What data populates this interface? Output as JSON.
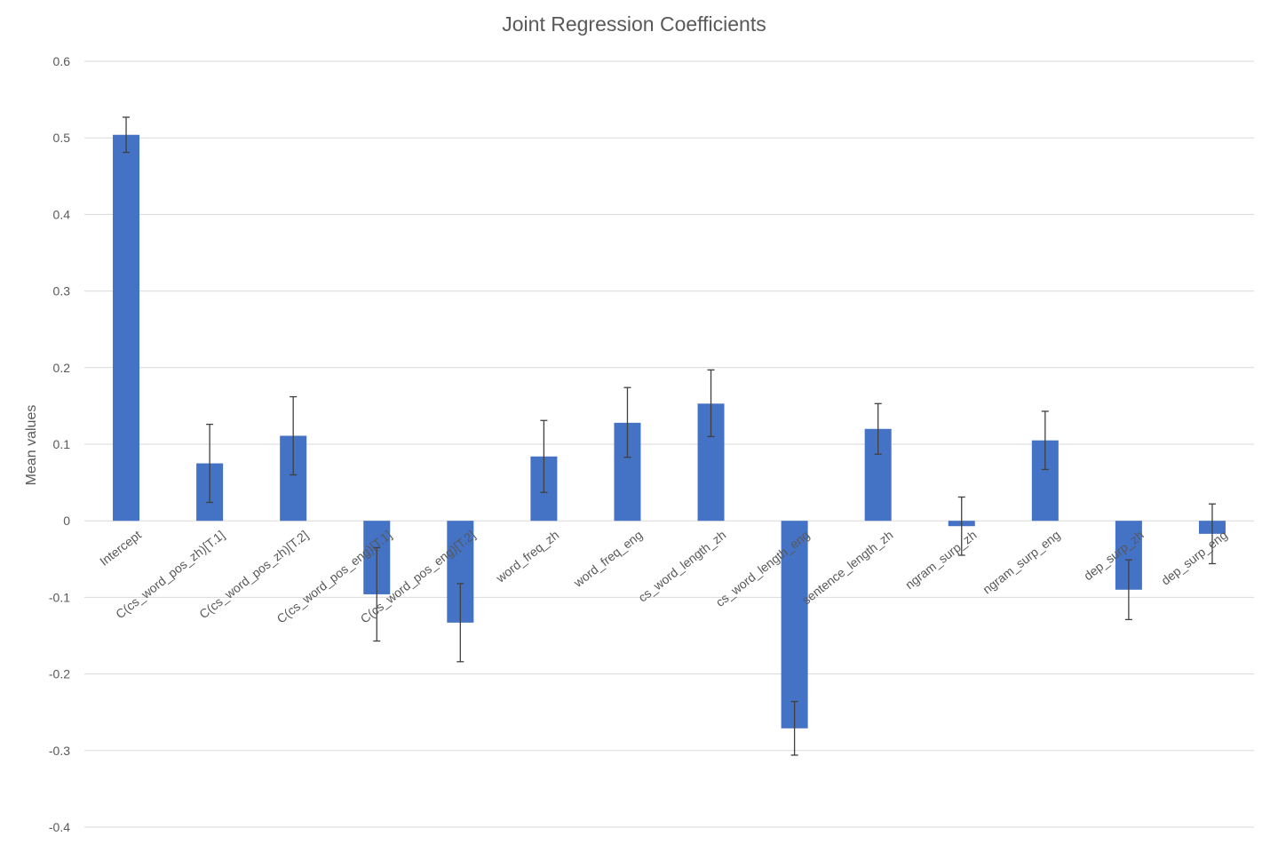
{
  "chart_data": {
    "type": "bar",
    "title": "Joint Regression Coefficients",
    "xlabel": "",
    "ylabel": "Mean values",
    "ylim": [
      -0.4,
      0.6
    ],
    "yticks": [
      0.6,
      0.5,
      0.4,
      0.3,
      0.2,
      0.1,
      0,
      -0.1,
      -0.2,
      -0.3,
      -0.4
    ],
    "ytick_labels": [
      "0.6",
      "0.5",
      "0.4",
      "0.3",
      "0.2",
      "0.1",
      "0",
      "-0.1",
      "-0.2",
      "-0.3",
      "-0.4"
    ],
    "grid": true,
    "legend": "none",
    "bar_color": "#4472c4",
    "categories": [
      "Intercept",
      "C(cs_word_pos_zh)[T.1]",
      "C(cs_word_pos_zh)[T.2]",
      "C(cs_word_pos_eng)[T.1]",
      "C(cs_word_pos_eng)[T.2]",
      "word_freq_zh",
      "word_freq_eng",
      "cs_word_length_zh",
      "cs_word_length_eng",
      "sentence_length_zh",
      "ngram_surp_zh",
      "ngram_surp_eng",
      "dep_surp_zh",
      "dep_surp_eng"
    ],
    "values": [
      0.504,
      0.075,
      0.111,
      -0.096,
      -0.133,
      0.084,
      0.128,
      0.153,
      -0.271,
      0.12,
      -0.007,
      0.105,
      -0.09,
      -0.017
    ],
    "error_low": [
      0.481,
      0.024,
      0.06,
      -0.157,
      -0.184,
      0.037,
      0.083,
      0.11,
      -0.306,
      0.087,
      -0.045,
      0.067,
      -0.129,
      -0.056
    ],
    "error_high": [
      0.527,
      0.126,
      0.162,
      -0.035,
      -0.082,
      0.131,
      0.174,
      0.197,
      -0.236,
      0.153,
      0.031,
      0.143,
      -0.051,
      0.022
    ]
  }
}
